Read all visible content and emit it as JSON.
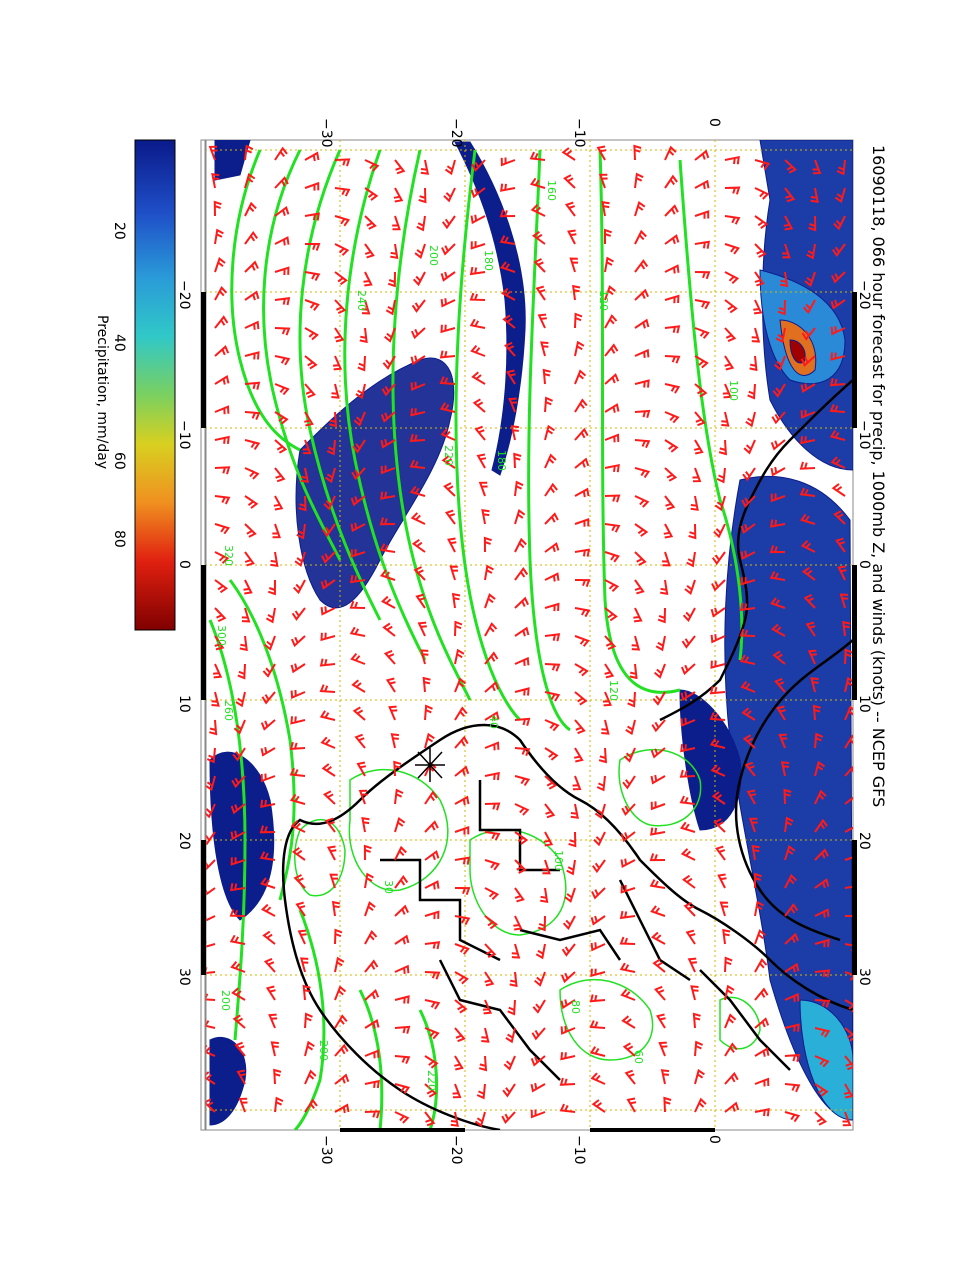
{
  "title": "16090118, 066 hour forecast for precip, 1000mb Z, and winds (knots) -- NCEP GFS",
  "colorbar": {
    "label": "Precipitation, mm/day",
    "ticks": [
      "20",
      "40",
      "60",
      "80"
    ],
    "colors": [
      "#0a1a8a",
      "#1f5fd0",
      "#2ab0d8",
      "#40d0b0",
      "#a8d830",
      "#e0d020",
      "#f08020",
      "#e02010",
      "#8a0000"
    ]
  },
  "axes": {
    "top_ticks": [
      "−30",
      "−20",
      "−10",
      "0"
    ],
    "bottom_ticks": [
      "−30",
      "−20",
      "−10",
      "0"
    ],
    "left_ticks": [
      "−20",
      "−10",
      "0",
      "10",
      "20",
      "30"
    ],
    "right_ticks": [
      "−20",
      "−10",
      "0",
      "10",
      "20",
      "30"
    ]
  },
  "contour_labels": [
    "160",
    "180",
    "200",
    "120",
    "100",
    "220",
    "240",
    "320",
    "300",
    "260",
    "200",
    "100",
    "120",
    "180",
    "200",
    "220",
    "60",
    "80",
    "40",
    "30"
  ],
  "colors": {
    "precip_dark": "#0c1d8c",
    "precip_mid": "#2a6ad8",
    "contour": "#22e022",
    "barb": "#ff1a1a",
    "grid": "#d6b400",
    "coast": "#000000"
  },
  "map": {
    "projection_note": "",
    "marker": "storm-center-symbol"
  }
}
